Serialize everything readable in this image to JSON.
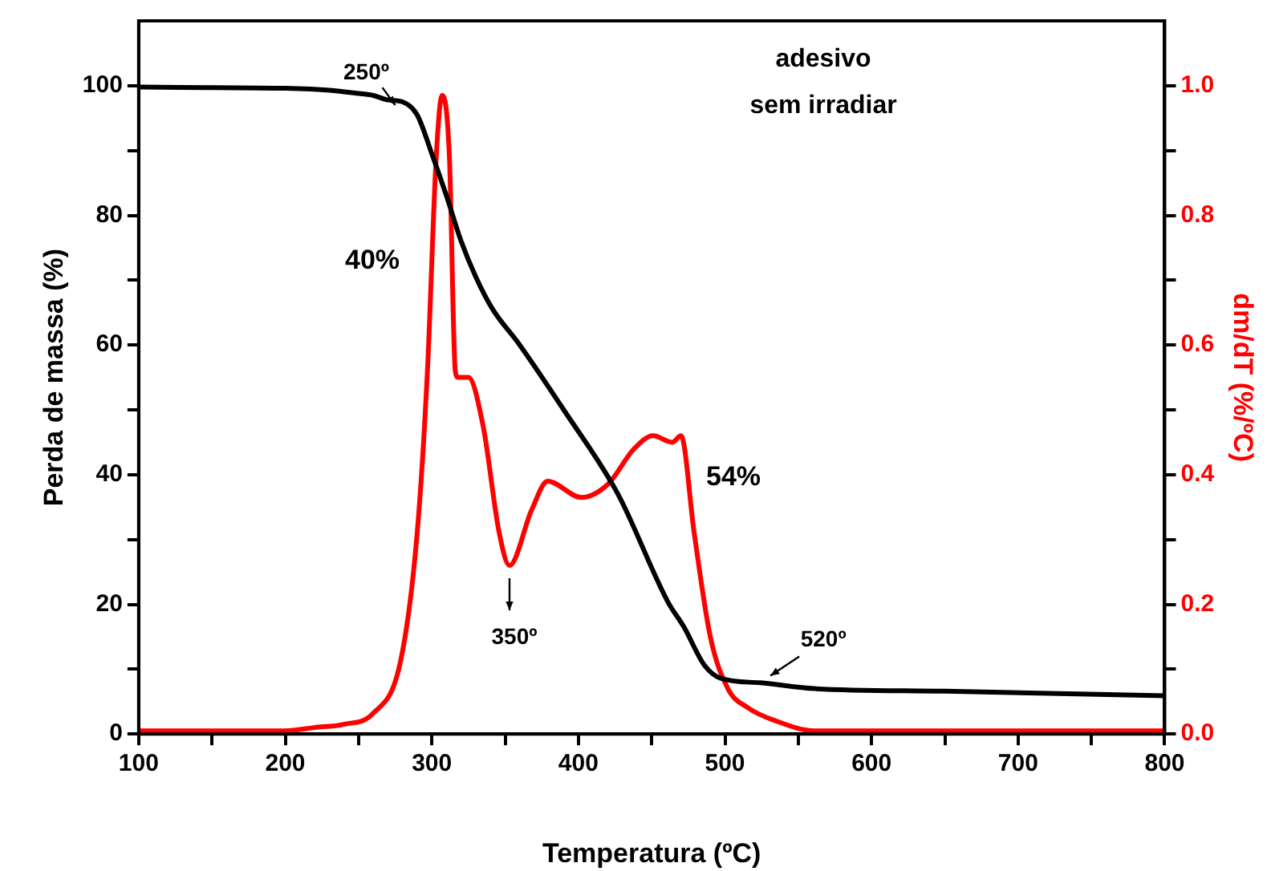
{
  "chart_data": {
    "type": "line",
    "xlabel": "Temperatura (ºC)",
    "ylabel": "Perda de massa (%)",
    "y2label": "dm/dT (%/ºC)",
    "xlim": [
      100,
      800
    ],
    "xticks": [
      100,
      {
        "value": 150,
        "label": null
      },
      200,
      {
        "value": 250,
        "label": null
      },
      300,
      {
        "value": 350,
        "label": null
      },
      400,
      {
        "value": 450,
        "label": null
      },
      500,
      {
        "value": 550,
        "label": null
      },
      600,
      {
        "value": 650,
        "label": null
      },
      700,
      {
        "value": 750,
        "label": null
      },
      800
    ],
    "ylim": [
      0,
      110
    ],
    "yticks": [
      0,
      {
        "value": 10,
        "label": null
      },
      20,
      {
        "value": 30,
        "label": null
      },
      40,
      {
        "value": 50,
        "label": null
      },
      60,
      {
        "value": 70,
        "label": null
      },
      80,
      {
        "value": 90,
        "label": null
      },
      100
    ],
    "y2lim": [
      0,
      1.1
    ],
    "y2ticks": [
      {
        "value": 0,
        "label": "0.0"
      },
      {
        "value": 0.1,
        "label": null
      },
      0.2,
      {
        "value": 0.3,
        "label": null
      },
      0.4,
      {
        "value": 0.5,
        "label": null
      },
      0.6,
      {
        "value": 0.7,
        "label": null
      },
      0.8,
      {
        "value": 0.9,
        "label": null
      },
      {
        "value": 1,
        "label": "1.0"
      }
    ],
    "grid": false,
    "legend": false,
    "marker": "none",
    "line_style": "solid",
    "series": [
      {
        "type": "line",
        "color": "#000000",
        "x": [
          100,
          150,
          200,
          230,
          250,
          260,
          270,
          280,
          290,
          300,
          310,
          320,
          330,
          341,
          360,
          390,
          427,
          461,
          472,
          486,
          497,
          524,
          561,
          650,
          800
        ],
        "values": [
          99.8,
          99.7,
          99.6,
          99.3,
          98.8,
          98.5,
          97.8,
          97.5,
          95.5,
          89.5,
          83,
          76,
          70.5,
          65.7,
          60,
          50,
          37,
          20.4,
          16.5,
          10.6,
          8.6,
          7.9,
          7,
          6.6,
          5.9
        ]
      },
      {
        "type": "line",
        "color": "#ff0000",
        "axis": "y2",
        "x": [
          100,
          200,
          220,
          240,
          260,
          279,
          290,
          297,
          303,
          307,
          312,
          316,
          318,
          325,
          335,
          346,
          353,
          368,
          379,
          402,
          420,
          438,
          451,
          464,
          470,
          479,
          490,
          502,
          516,
          535,
          561,
          650,
          800
        ],
        "values": [
          0.005,
          0.005,
          0.01,
          0.015,
          0.032,
          0.116,
          0.31,
          0.56,
          0.89,
          0.985,
          0.89,
          0.56,
          0.55,
          0.55,
          0.475,
          0.31,
          0.26,
          0.345,
          0.39,
          0.365,
          0.385,
          0.44,
          0.46,
          0.45,
          0.46,
          0.31,
          0.15,
          0.07,
          0.04,
          0.02,
          0.005,
          0.005,
          0.005
        ]
      }
    ],
    "annotations": [
      {
        "text": "250º",
        "x": 275,
        "y": 97
      },
      {
        "text": "350º",
        "x": 353,
        "y": 26
      },
      {
        "text": "520º",
        "x": 531,
        "y": 9
      },
      "40%",
      "54%",
      "adesivo",
      "sem irradiar"
    ]
  }
}
